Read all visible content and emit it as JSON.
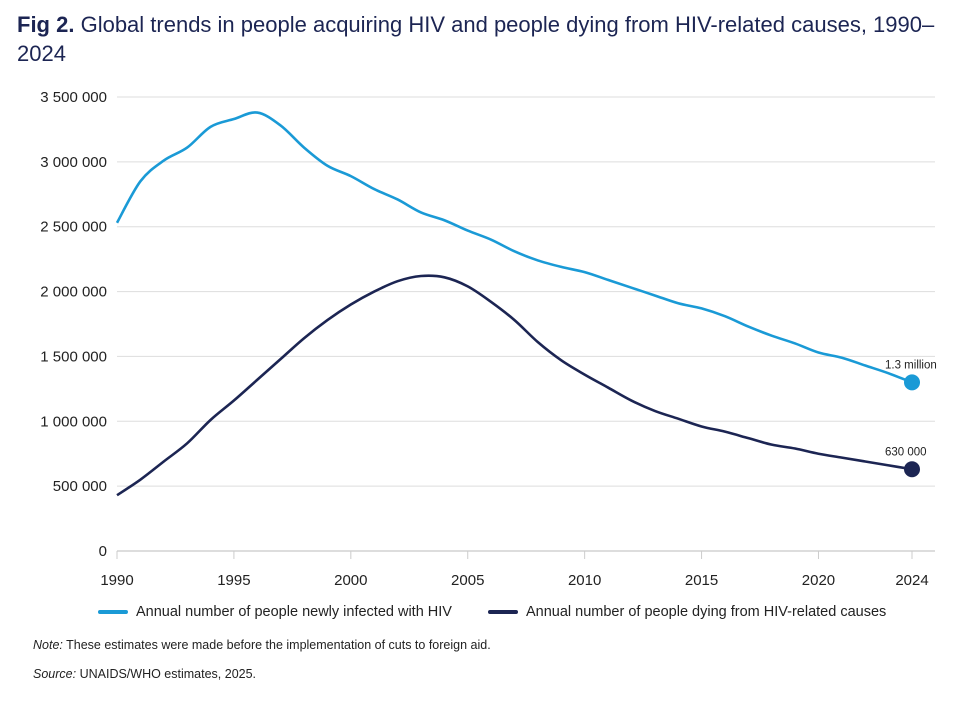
{
  "title": {
    "prefix": "Fig 2.",
    "text": "Global trends in people acquiring HIV and people dying from HIV-related causes, 1990–2024"
  },
  "note": {
    "label": "Note:",
    "text": "These estimates were made before the implementation of cuts to foreign aid."
  },
  "source": {
    "label": "Source:",
    "text": "UNAIDS/WHO estimates, 2025."
  },
  "chart_data": {
    "type": "line",
    "title": "Global trends in people acquiring HIV and people dying from HIV-related causes, 1990–2024",
    "xlabel": "",
    "ylabel": "",
    "xlim": [
      1990,
      2024
    ],
    "ylim": [
      0,
      3500000
    ],
    "grid": "horizontal",
    "legend_placement": "bottom",
    "x_ticks": [
      "1990",
      "1995",
      "2000",
      "2005",
      "2010",
      "2015",
      "2020",
      "2024"
    ],
    "y_ticks": [
      "0",
      "500 000",
      "1 000 000",
      "1 500 000",
      "2 000 000",
      "2 500 000",
      "3 000 000",
      "3 500 000"
    ],
    "x": [
      1990,
      1991,
      1992,
      1993,
      1994,
      1995,
      1996,
      1997,
      1998,
      1999,
      2000,
      2001,
      2002,
      2003,
      2004,
      2005,
      2006,
      2007,
      2008,
      2009,
      2010,
      2011,
      2012,
      2013,
      2014,
      2015,
      2016,
      2017,
      2018,
      2019,
      2020,
      2021,
      2022,
      2023,
      2024
    ],
    "series": [
      {
        "name": "Annual number of people newly infected with HIV",
        "color": "#1a9ad6",
        "values": [
          2530000,
          2850000,
          3010000,
          3110000,
          3270000,
          3330000,
          3380000,
          3280000,
          3110000,
          2970000,
          2890000,
          2790000,
          2710000,
          2610000,
          2550000,
          2470000,
          2400000,
          2310000,
          2240000,
          2190000,
          2150000,
          2090000,
          2030000,
          1970000,
          1910000,
          1870000,
          1810000,
          1730000,
          1660000,
          1600000,
          1530000,
          1490000,
          1430000,
          1370000,
          1300000
        ],
        "end_label": "1.3 million"
      },
      {
        "name": "Annual number of people dying from HIV-related causes",
        "color": "#1c2553",
        "values": [
          430000,
          550000,
          690000,
          830000,
          1010000,
          1160000,
          1320000,
          1480000,
          1640000,
          1780000,
          1900000,
          2000000,
          2080000,
          2120000,
          2110000,
          2040000,
          1920000,
          1780000,
          1610000,
          1470000,
          1360000,
          1260000,
          1160000,
          1080000,
          1020000,
          960000,
          920000,
          870000,
          820000,
          790000,
          750000,
          720000,
          690000,
          660000,
          630000
        ],
        "end_label": "630 000"
      }
    ]
  }
}
